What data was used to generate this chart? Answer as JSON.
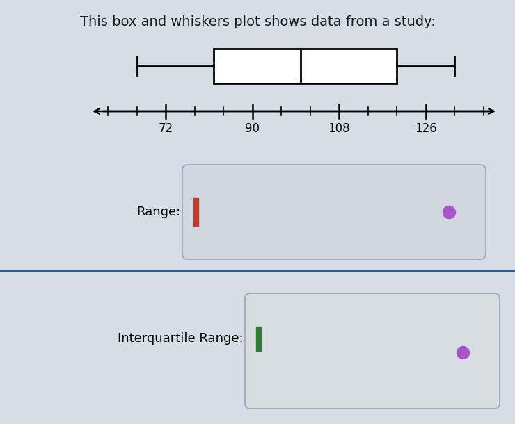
{
  "title": "This box and whiskers plot shows data from a study:",
  "title_fontsize": 14,
  "title_color": "#1a1a1a",
  "bg_color": "#d6dde5",
  "box_plot": {
    "whisker_low": 66,
    "q1": 82,
    "median": 100,
    "q3": 120,
    "whisker_high": 132,
    "color": "black",
    "linewidth": 2.0
  },
  "number_line": {
    "data_min": 60,
    "data_max": 138,
    "labeled_ticks": [
      72,
      90,
      108,
      126
    ],
    "all_ticks_step": 6,
    "tick_fontsize": 12,
    "linewidth": 1.8
  },
  "range_label": "Range:",
  "iqr_label": "Interquartile Range:",
  "label_fontsize": 13,
  "answer_box_facecolor": "#d0d7de",
  "answer_box_edgecolor": "#9aa5ae",
  "answer_box2_facecolor": "#d8dde2",
  "answer_box2_edgecolor": "#9aa5ae",
  "red_bar_color": "#c0392b",
  "green_bar_color": "#2e7d32",
  "purple_dot_color": "#a855cc",
  "divider_color": "#1a5fb4",
  "divider_linewidth": 1.5
}
